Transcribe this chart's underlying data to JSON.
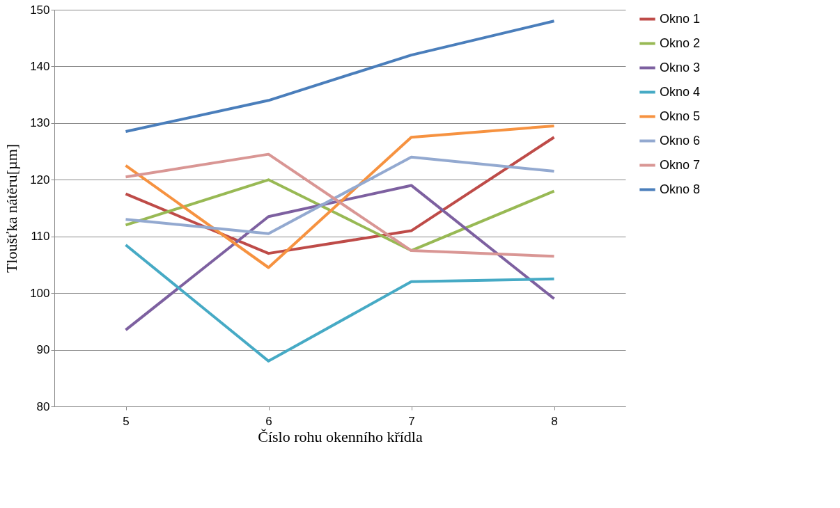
{
  "chart_data": {
    "type": "line",
    "xlabel": "Číslo rohu okenního křídla",
    "ylabel": "Tloušťka nátěru[µm]",
    "categories": [
      "5",
      "6",
      "7",
      "8"
    ],
    "ylim": [
      80,
      150
    ],
    "yticks": [
      80,
      90,
      100,
      110,
      120,
      130,
      140,
      150
    ],
    "grid": "y",
    "legend": "right",
    "marker": "none",
    "line_style": "solid",
    "series": [
      {
        "name": "Okno 1",
        "color": "#be4b48",
        "values": [
          117.5,
          107,
          111,
          127.5
        ]
      },
      {
        "name": "Okno 2",
        "color": "#98b954",
        "values": [
          112,
          120,
          107.5,
          118
        ]
      },
      {
        "name": "Okno 3",
        "color": "#7d60a0",
        "values": [
          93.5,
          113.5,
          119,
          99
        ]
      },
      {
        "name": "Okno 4",
        "color": "#46aac5",
        "values": [
          108.5,
          88,
          102,
          102.5
        ]
      },
      {
        "name": "Okno 5",
        "color": "#f69240",
        "values": [
          122.5,
          104.5,
          127.5,
          129.5
        ]
      },
      {
        "name": "Okno 6",
        "color": "#93a9d0",
        "values": [
          113,
          110.5,
          124,
          121.5
        ]
      },
      {
        "name": "Okno 7",
        "color": "#d99694",
        "values": [
          120.5,
          124.5,
          107.5,
          106.5
        ]
      },
      {
        "name": "Okno 8",
        "color": "#4a7ebb",
        "values": [
          128.5,
          134,
          142,
          148
        ]
      }
    ]
  }
}
